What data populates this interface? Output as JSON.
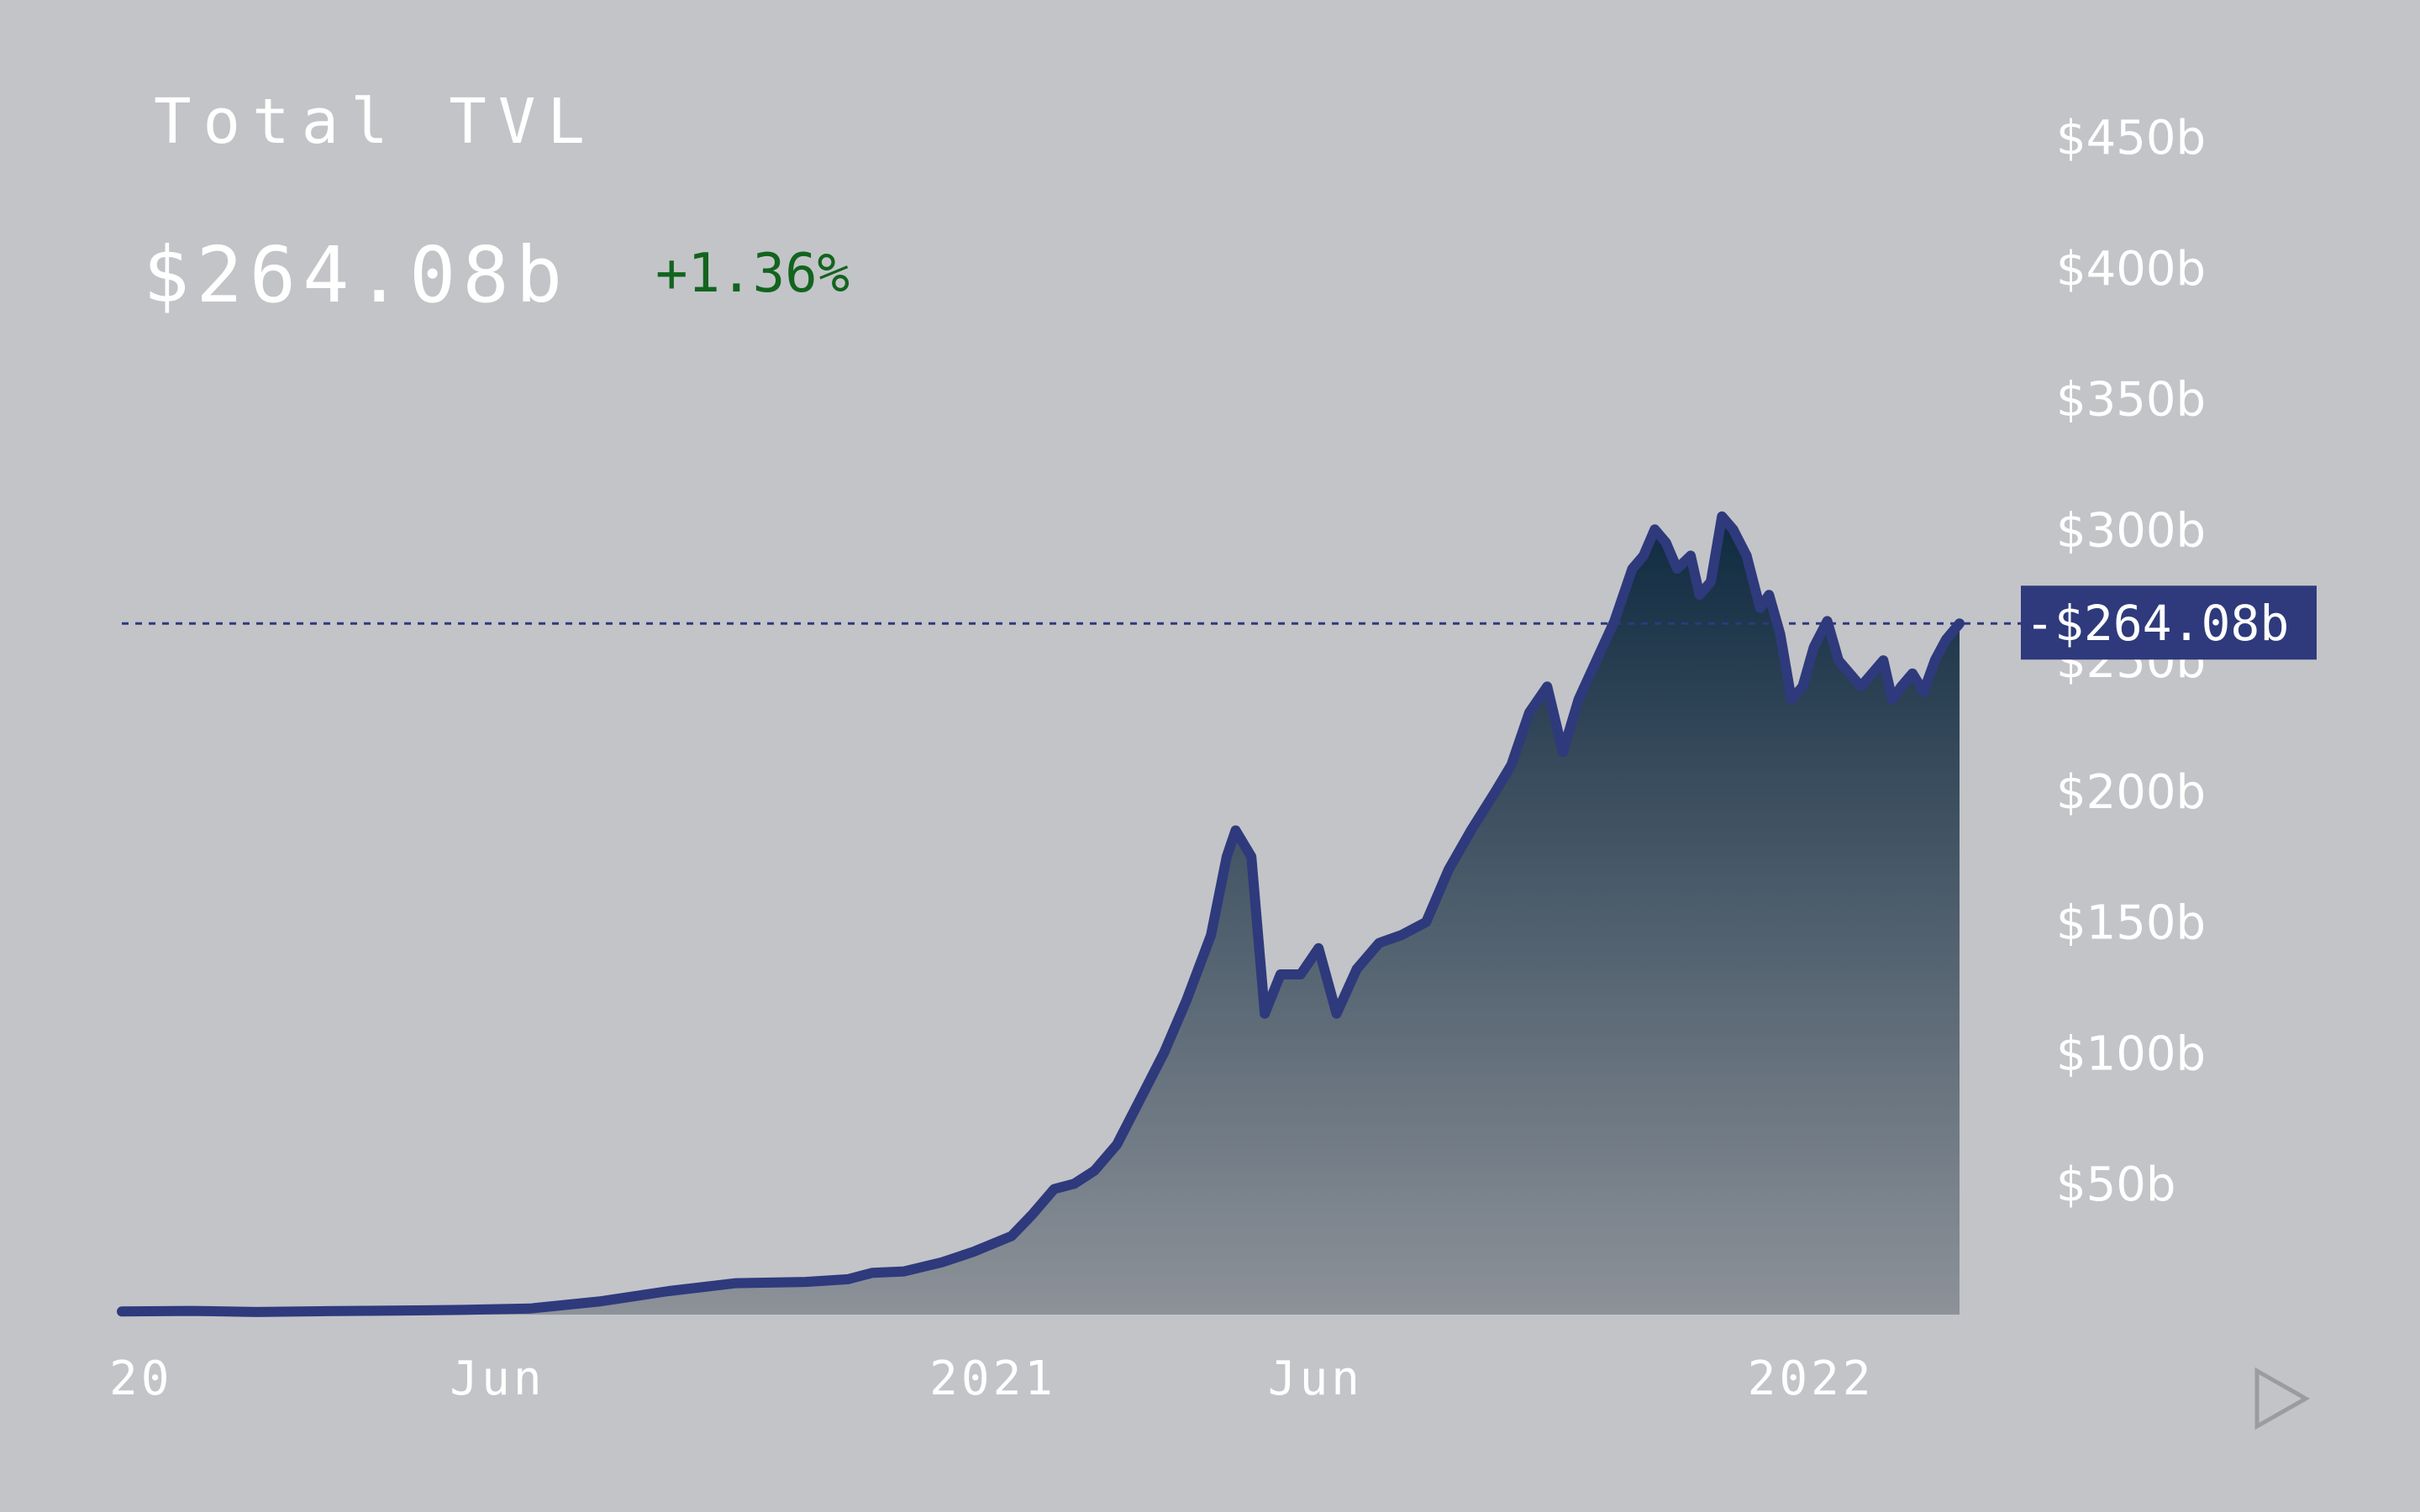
{
  "header": {
    "title": "Total TVL",
    "value": "$264.08b",
    "change": "+1.36%"
  },
  "colors": {
    "background": "#c3c4c8",
    "line": "#2e3a7c",
    "fill_top": "#112a42",
    "fill_bottom": "#8a8f96",
    "change_positive": "#12641f",
    "text": "#ffffff"
  },
  "chart_data": {
    "type": "area",
    "title": "Total TVL",
    "xlabel": "",
    "ylabel": "",
    "ylim": [
      0,
      475
    ],
    "y_unit": "$b",
    "y_ticks": [
      "$450b",
      "$400b",
      "$350b",
      "$300b",
      "$250b",
      "$200b",
      "$150b",
      "$100b",
      "$50b"
    ],
    "y_tick_values": [
      450,
      400,
      350,
      300,
      250,
      200,
      150,
      100,
      50
    ],
    "x_ticks": [
      "20",
      "Jun",
      "2021",
      "Jun",
      "2022"
    ],
    "x_tick_dates": [
      "2020-01-01",
      "2020-06-01",
      "2021-01-01",
      "2021-06-01",
      "2022-01-01"
    ],
    "x_range": [
      "2020-01-01",
      "2022-03-31"
    ],
    "current_value": 264.08,
    "current_label": "-$264.08b",
    "grid": false,
    "legend": "none",
    "series": [
      {
        "x": [
          "2020-01-01",
          "2020-02-01",
          "2020-03-01",
          "2020-04-01",
          "2020-05-01",
          "2020-06-01",
          "2020-07-01",
          "2020-08-01",
          "2020-09-01",
          "2020-10-01",
          "2020-11-01",
          "2020-11-20",
          "2020-12-01",
          "2020-12-15",
          "2021-01-01",
          "2021-01-15",
          "2021-02-01",
          "2021-02-10",
          "2021-02-20",
          "2021-03-01",
          "2021-03-10",
          "2021-03-20",
          "2021-04-01",
          "2021-04-10",
          "2021-04-20",
          "2021-05-01",
          "2021-05-08",
          "2021-05-12",
          "2021-05-19",
          "2021-05-25",
          "2021-06-01",
          "2021-06-10",
          "2021-06-18",
          "2021-06-26",
          "2021-07-05",
          "2021-07-15",
          "2021-07-25",
          "2021-08-05",
          "2021-08-15",
          "2021-08-25",
          "2021-09-05",
          "2021-09-12",
          "2021-09-20",
          "2021-09-28",
          "2021-10-05",
          "2021-10-12",
          "2021-10-20",
          "2021-10-28",
          "2021-11-05",
          "2021-11-10",
          "2021-11-15",
          "2021-11-20",
          "2021-11-25",
          "2021-12-01",
          "2021-12-05",
          "2021-12-10",
          "2021-12-15",
          "2021-12-20",
          "2021-12-26",
          "2022-01-01",
          "2022-01-05",
          "2022-01-10",
          "2022-01-15",
          "2022-01-20",
          "2022-01-25",
          "2022-01-31",
          "2022-02-05",
          "2022-02-10",
          "2022-02-15",
          "2022-02-20",
          "2022-02-25",
          "2022-03-01",
          "2022-03-05",
          "2022-03-10",
          "2022-03-15",
          "2022-03-20",
          "2022-03-25",
          "2022-03-31"
        ],
        "y": [
          1.2,
          1.4,
          1.0,
          1.3,
          1.5,
          1.8,
          2.3,
          5.0,
          9.0,
          12.0,
          12.5,
          13.5,
          16.0,
          16.5,
          20.0,
          24.0,
          30.0,
          38.0,
          48.0,
          50.0,
          55.0,
          65.0,
          85.0,
          100.0,
          120.0,
          145.0,
          175.0,
          185.0,
          175.0,
          115.0,
          130.0,
          130.0,
          140.0,
          115.0,
          132.0,
          142.0,
          145.0,
          150.0,
          170.0,
          185.0,
          200.0,
          210.0,
          230.0,
          240.0,
          215.0,
          235.0,
          250.0,
          265.0,
          285.0,
          290.0,
          300.0,
          295.0,
          285.0,
          290.0,
          275.0,
          280.0,
          305.0,
          300.0,
          290.0,
          270.0,
          275.0,
          260.0,
          235.0,
          240.0,
          255.0,
          265.0,
          250.0,
          245.0,
          240.0,
          245.0,
          250.0,
          235.0,
          240.0,
          245.0,
          238.0,
          250.0,
          258.0,
          264.08
        ]
      }
    ]
  }
}
